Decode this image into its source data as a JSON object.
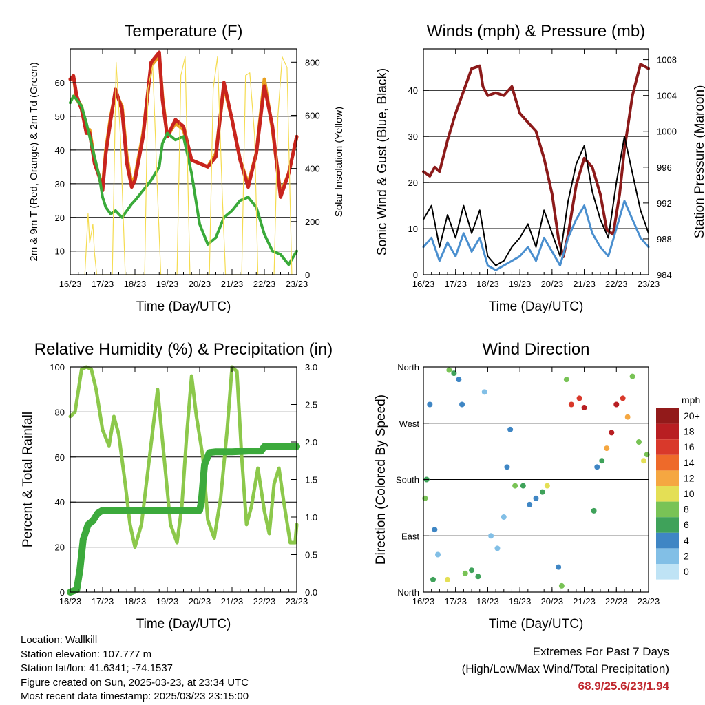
{
  "info": {
    "location": "Location: Wallkill",
    "elevation": "Station elevation: 107.777 m",
    "latlon": "Station lat/lon: 41.6341; -74.1537",
    "created": "Figure created on Sun, 2025-03-23, at 23:34 UTC",
    "latest": "Most recent data timestamp: 2025/03/23 23:15:00"
  },
  "extremes": {
    "title": "Extremes For Past 7 Days",
    "subtitle": "(High/Low/Max Wind/Total Precipitation)",
    "values": "68.9/25.6/23/1.94",
    "value_color": "#c0282f"
  },
  "chart_data": [
    {
      "type": "line",
      "title": "Temperature (F)",
      "xlabel": "Time (Day/UTC)",
      "ylabel": "2m & 9m T (Red, Orange) & 2m Td (Green)",
      "y2label": "Solar Insolation (Yellow)",
      "x_ticks": [
        "16/23",
        "17/23",
        "18/23",
        "19/23",
        "20/23",
        "21/23",
        "22/23",
        "23/23"
      ],
      "xlim": [
        0,
        7
      ],
      "ylim": [
        3,
        70
      ],
      "y_ticks": [
        10,
        20,
        30,
        40,
        50,
        60
      ],
      "y2lim": [
        0,
        850
      ],
      "y2_ticks": [
        0,
        200,
        400,
        600,
        800
      ],
      "grid": true,
      "series": [
        {
          "color": "#e8a020",
          "width": 5,
          "axis": "left",
          "x": [
            0,
            0.1,
            0.2,
            0.35,
            0.5,
            0.6,
            0.75,
            0.9,
            1.0,
            1.1,
            1.25,
            1.4,
            1.6,
            1.75,
            1.9,
            2.0,
            2.25,
            2.5,
            2.75,
            2.85,
            3.0,
            3.25,
            3.5,
            3.75,
            4.0,
            4.25,
            4.5,
            4.75,
            5.0,
            5.25,
            5.5,
            5.75,
            6.0,
            6.25,
            6.5,
            6.75,
            7.0
          ],
          "y": [
            61,
            62,
            55,
            53,
            45,
            46,
            37,
            32,
            29,
            40,
            50,
            57,
            53,
            38,
            30,
            32,
            45,
            65,
            68,
            56,
            44,
            48,
            46,
            37,
            36,
            35,
            39,
            59,
            49,
            37,
            30,
            39,
            61,
            46,
            27,
            33,
            44
          ]
        },
        {
          "color": "#c8241e",
          "width": 5,
          "axis": "left",
          "x": [
            0,
            0.1,
            0.2,
            0.35,
            0.5,
            0.6,
            0.75,
            0.9,
            1.0,
            1.1,
            1.25,
            1.4,
            1.6,
            1.75,
            1.9,
            2.0,
            2.25,
            2.5,
            2.75,
            2.85,
            3.0,
            3.25,
            3.5,
            3.75,
            4.0,
            4.25,
            4.5,
            4.75,
            5.0,
            5.25,
            5.5,
            5.75,
            6.0,
            6.25,
            6.5,
            6.75,
            7.0
          ],
          "y": [
            61,
            62,
            56,
            52,
            45,
            45,
            36,
            32,
            28,
            39,
            49,
            58,
            52,
            36,
            29,
            31,
            44,
            66,
            69,
            55,
            44,
            49,
            47,
            37,
            36,
            35,
            38,
            60,
            49,
            37,
            29,
            39,
            59,
            47,
            26,
            33,
            44
          ]
        },
        {
          "color": "#3aaa3a",
          "width": 4,
          "axis": "left",
          "x": [
            0,
            0.1,
            0.2,
            0.35,
            0.5,
            0.6,
            0.75,
            0.9,
            1.0,
            1.1,
            1.25,
            1.4,
            1.6,
            1.75,
            1.9,
            2.0,
            2.25,
            2.5,
            2.75,
            2.85,
            3.0,
            3.25,
            3.5,
            3.75,
            4.0,
            4.25,
            4.5,
            4.75,
            5.0,
            5.25,
            5.5,
            5.75,
            6.0,
            6.25,
            6.5,
            6.75,
            7.0
          ],
          "y": [
            54,
            56,
            55,
            53,
            48,
            44,
            38,
            32,
            26,
            23,
            21,
            22,
            20,
            22,
            24,
            25,
            28,
            31,
            35,
            42,
            45,
            43,
            44,
            33,
            18,
            12,
            14,
            20,
            22,
            25,
            26,
            23,
            15,
            10,
            9,
            6,
            10
          ]
        },
        {
          "color": "#f5dc50",
          "width": 1.2,
          "axis": "right",
          "x": [
            0.45,
            0.55,
            0.6,
            0.7,
            0.75,
            0.82,
            1.3,
            1.42,
            1.55,
            1.7,
            2.3,
            2.4,
            2.55,
            2.7,
            2.8,
            3.3,
            3.42,
            3.55,
            3.7,
            4.3,
            4.42,
            4.55,
            4.7,
            4.8,
            5.3,
            5.42,
            5.55,
            5.7,
            5.8,
            6.3,
            6.42,
            6.55,
            6.7,
            6.85
          ],
          "y": [
            0,
            230,
            120,
            190,
            80,
            0,
            0,
            800,
            520,
            0,
            0,
            700,
            790,
            300,
            0,
            0,
            750,
            820,
            0,
            0,
            700,
            820,
            300,
            0,
            0,
            750,
            760,
            520,
            0,
            0,
            600,
            820,
            780,
            0
          ]
        }
      ]
    },
    {
      "type": "line",
      "title": "Winds (mph) & Pressure (mb)",
      "xlabel": "Time (Day/UTC)",
      "ylabel": "Sonic Wind & Gust (Blue, Black)",
      "y2label": "Station Pressure (Maroon)",
      "x_ticks": [
        "16/23",
        "17/23",
        "18/23",
        "19/23",
        "20/23",
        "21/23",
        "22/23",
        "23/23"
      ],
      "xlim": [
        0,
        7
      ],
      "ylim": [
        0,
        49
      ],
      "y_ticks": [
        0,
        10,
        20,
        30,
        40
      ],
      "y2lim": [
        984,
        1009.2
      ],
      "y2_ticks": [
        984,
        988,
        992,
        996,
        1000,
        1004,
        1008
      ],
      "grid": true,
      "series": [
        {
          "color": "#8c1a1a",
          "width": 4,
          "axis": "right",
          "x": [
            0,
            0.2,
            0.35,
            0.5,
            0.75,
            1.0,
            1.25,
            1.5,
            1.75,
            1.85,
            2.0,
            2.25,
            2.5,
            2.75,
            3.0,
            3.25,
            3.5,
            3.75,
            4.0,
            4.2,
            4.35,
            4.5,
            4.75,
            5.0,
            5.25,
            5.5,
            5.7,
            5.9,
            6.1,
            6.25,
            6.5,
            6.75,
            7.0
          ],
          "y": [
            995.5,
            995,
            996,
            995.5,
            999,
            1002,
            1004.5,
            1007,
            1007.3,
            1005,
            1004,
            1004.3,
            1004,
            1005,
            1002,
            1001,
            1000,
            997,
            993,
            988,
            986,
            988.5,
            994,
            997,
            996,
            993,
            989,
            988.5,
            993,
            998,
            1004,
            1007.5,
            1007
          ]
        },
        {
          "color": "#4a8fcf",
          "width": 3,
          "axis": "left",
          "x": [
            0,
            0.25,
            0.5,
            0.75,
            1.0,
            1.25,
            1.5,
            1.75,
            2.0,
            2.25,
            2.5,
            2.75,
            3.0,
            3.25,
            3.5,
            3.75,
            4.0,
            4.25,
            4.5,
            4.75,
            5.0,
            5.25,
            5.5,
            5.75,
            6.0,
            6.25,
            6.5,
            6.75,
            7.0
          ],
          "y": [
            6,
            8,
            3,
            7,
            4,
            9,
            5,
            8,
            2,
            1,
            2,
            3,
            4,
            6,
            3,
            8,
            5,
            2,
            8,
            12,
            15,
            9,
            6,
            4,
            10,
            16,
            12,
            8,
            6
          ]
        },
        {
          "color": "#000000",
          "width": 2,
          "axis": "left",
          "x": [
            0,
            0.25,
            0.5,
            0.75,
            1.0,
            1.25,
            1.5,
            1.75,
            2.0,
            2.25,
            2.5,
            2.75,
            3.0,
            3.25,
            3.5,
            3.75,
            4.0,
            4.25,
            4.5,
            4.75,
            5.0,
            5.25,
            5.5,
            5.75,
            6.0,
            6.25,
            6.5,
            6.75,
            7.0
          ],
          "y": [
            12,
            15,
            6,
            13,
            8,
            15,
            9,
            14,
            4,
            2,
            3,
            6,
            8,
            11,
            6,
            14,
            9,
            4,
            16,
            24,
            28,
            18,
            12,
            8,
            20,
            30,
            22,
            14,
            9
          ]
        }
      ]
    },
    {
      "type": "line",
      "title": "Relative Humidity (%) & Precipitation (in)",
      "xlabel": "Time (Day/UTC)",
      "ylabel": "Percent & Total Rainfall",
      "x_ticks": [
        "16/23",
        "17/23",
        "18/23",
        "19/23",
        "20/23",
        "21/23",
        "22/23",
        "23/23"
      ],
      "xlim": [
        0,
        7
      ],
      "ylim": [
        0,
        100
      ],
      "y_ticks": [
        0,
        20,
        40,
        60,
        80,
        100
      ],
      "y2lim": [
        0,
        3.0
      ],
      "y2_ticks": [
        "0.0",
        "0.5",
        "1.0",
        "1.5",
        "2.0",
        "2.5",
        "3.0"
      ],
      "grid": true,
      "series": [
        {
          "color": "#8cc84b",
          "width": 5,
          "axis": "left",
          "x": [
            0,
            0.15,
            0.35,
            0.5,
            0.65,
            0.8,
            1.0,
            1.2,
            1.35,
            1.5,
            1.7,
            1.85,
            2.0,
            2.2,
            2.45,
            2.7,
            2.9,
            3.1,
            3.3,
            3.45,
            3.6,
            3.75,
            3.9,
            4.1,
            4.25,
            4.45,
            4.65,
            4.85,
            5.0,
            5.15,
            5.3,
            5.45,
            5.6,
            5.8,
            6.0,
            6.15,
            6.3,
            6.45,
            6.6,
            6.8,
            6.95,
            7.0
          ],
          "y": [
            78,
            80,
            99,
            100,
            99,
            90,
            72,
            65,
            78,
            70,
            48,
            30,
            20,
            30,
            60,
            90,
            60,
            30,
            22,
            38,
            70,
            96,
            78,
            60,
            32,
            24,
            42,
            72,
            100,
            98,
            60,
            30,
            38,
            55,
            36,
            26,
            48,
            55,
            40,
            22,
            22,
            30
          ]
        },
        {
          "color": "#3caa3c",
          "width": 10,
          "axis": "right",
          "x": [
            0,
            0.2,
            0.3,
            0.4,
            0.55,
            0.7,
            0.85,
            1.0,
            1.5,
            2.0,
            2.5,
            3.0,
            3.5,
            4.0,
            4.05,
            4.15,
            4.3,
            4.5,
            5.0,
            5.5,
            5.9,
            6.0,
            6.5,
            7.0
          ],
          "y": [
            0,
            0.03,
            0.3,
            0.7,
            0.9,
            0.95,
            1.05,
            1.09,
            1.09,
            1.09,
            1.09,
            1.09,
            1.09,
            1.09,
            1.2,
            1.7,
            1.86,
            1.87,
            1.87,
            1.88,
            1.88,
            1.94,
            1.94,
            1.94
          ]
        }
      ]
    },
    {
      "type": "scatter",
      "title": "Wind Direction",
      "xlabel": "Time (Day/UTC)",
      "ylabel": "Direction (Colored By Speed)",
      "x_ticks": [
        "16/23",
        "17/23",
        "18/23",
        "19/23",
        "20/23",
        "21/23",
        "22/23",
        "23/23"
      ],
      "xlim": [
        0,
        7
      ],
      "ylim": [
        0,
        360
      ],
      "y_tick_labels": [
        "North",
        "East",
        "South",
        "West",
        "North"
      ],
      "y_tick_values": [
        0,
        90,
        180,
        270,
        360
      ],
      "grid": true,
      "colorbar": {
        "title": "mph",
        "labels": [
          "0",
          "2",
          "4",
          "6",
          "8",
          "10",
          "12",
          "14",
          "16",
          "18",
          "20+"
        ],
        "colors": [
          "#bfe3f5",
          "#82bfe6",
          "#3f86c4",
          "#3fa25a",
          "#79c356",
          "#e4df55",
          "#f5a741",
          "#ee6a2a",
          "#d9392b",
          "#b81e22",
          "#921a1a"
        ]
      },
      "clusters": [
        {
          "x": 0.05,
          "y": 150,
          "speed": 8
        },
        {
          "x": 0.1,
          "y": 180,
          "speed": 6
        },
        {
          "x": 0.2,
          "y": 300,
          "speed": 3
        },
        {
          "x": 0.3,
          "y": 20,
          "speed": 6
        },
        {
          "x": 0.35,
          "y": 100,
          "speed": 4
        },
        {
          "x": 0.45,
          "y": 60,
          "speed": 2
        },
        {
          "x": 0.75,
          "y": 20,
          "speed": 9
        },
        {
          "x": 0.8,
          "y": 355,
          "speed": 8
        },
        {
          "x": 0.95,
          "y": 350,
          "speed": 6
        },
        {
          "x": 1.1,
          "y": 340,
          "speed": 4
        },
        {
          "x": 1.2,
          "y": 300,
          "speed": 3
        },
        {
          "x": 1.3,
          "y": 30,
          "speed": 7
        },
        {
          "x": 1.5,
          "y": 35,
          "speed": 6
        },
        {
          "x": 1.7,
          "y": 25,
          "speed": 5
        },
        {
          "x": 1.9,
          "y": 320,
          "speed": 2
        },
        {
          "x": 2.1,
          "y": 90,
          "speed": 1
        },
        {
          "x": 2.3,
          "y": 70,
          "speed": 1
        },
        {
          "x": 2.5,
          "y": 120,
          "speed": 2
        },
        {
          "x": 2.6,
          "y": 200,
          "speed": 4
        },
        {
          "x": 2.7,
          "y": 260,
          "speed": 3
        },
        {
          "x": 2.85,
          "y": 170,
          "speed": 7
        },
        {
          "x": 3.1,
          "y": 170,
          "speed": 6
        },
        {
          "x": 3.3,
          "y": 140,
          "speed": 3
        },
        {
          "x": 3.5,
          "y": 150,
          "speed": 4
        },
        {
          "x": 3.7,
          "y": 160,
          "speed": 6
        },
        {
          "x": 3.85,
          "y": 170,
          "speed": 10
        },
        {
          "x": 4.2,
          "y": 40,
          "speed": 4
        },
        {
          "x": 4.3,
          "y": 10,
          "speed": 7
        },
        {
          "x": 4.45,
          "y": 340,
          "speed": 8
        },
        {
          "x": 4.6,
          "y": 300,
          "speed": 16
        },
        {
          "x": 4.85,
          "y": 310,
          "speed": 15
        },
        {
          "x": 5.0,
          "y": 295,
          "speed": 17
        },
        {
          "x": 5.3,
          "y": 130,
          "speed": 6
        },
        {
          "x": 5.4,
          "y": 200,
          "speed": 3
        },
        {
          "x": 5.55,
          "y": 210,
          "speed": 6
        },
        {
          "x": 5.7,
          "y": 230,
          "speed": 11
        },
        {
          "x": 5.85,
          "y": 255,
          "speed": 17
        },
        {
          "x": 6.0,
          "y": 300,
          "speed": 18
        },
        {
          "x": 6.2,
          "y": 310,
          "speed": 16
        },
        {
          "x": 6.35,
          "y": 280,
          "speed": 12
        },
        {
          "x": 6.5,
          "y": 345,
          "speed": 7
        },
        {
          "x": 6.7,
          "y": 240,
          "speed": 7
        },
        {
          "x": 6.85,
          "y": 210,
          "speed": 9
        },
        {
          "x": 6.95,
          "y": 220,
          "speed": 8
        }
      ]
    }
  ]
}
